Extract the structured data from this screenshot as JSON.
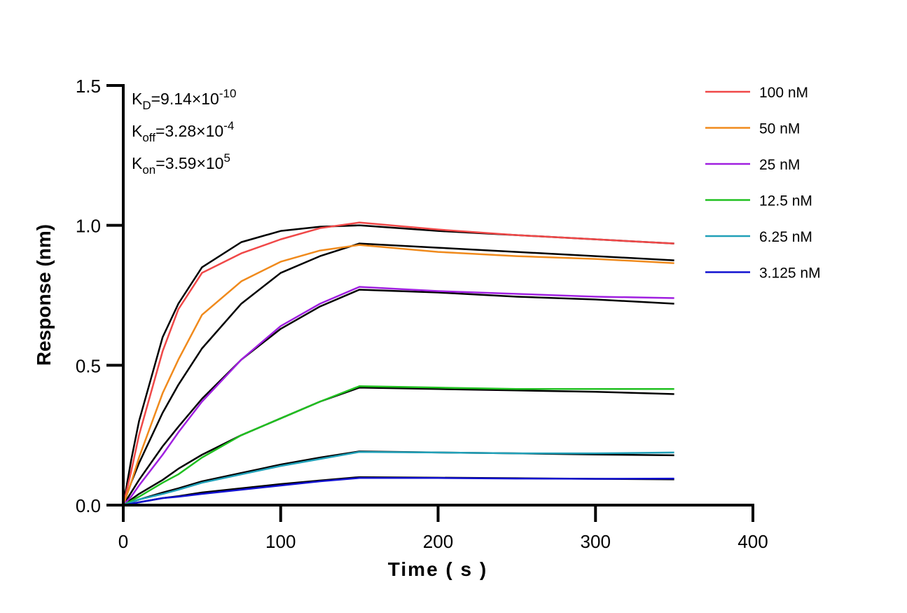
{
  "chart_data": {
    "type": "line",
    "title": "",
    "xlabel": "Time ( s )",
    "ylabel": "Response (nm)",
    "xlim": [
      0,
      400
    ],
    "ylim": [
      0,
      1.5
    ],
    "xticks": [
      "0",
      "100",
      "200",
      "300",
      "400"
    ],
    "yticks": [
      "0.0",
      "0.5",
      "1.0",
      "1.5"
    ],
    "grid": false,
    "legend_position": "top-right",
    "fit_color": "#000000",
    "annotations": [
      {
        "k": "K",
        "sub": "D",
        "value": "=9.14×10",
        "exp": "-10"
      },
      {
        "k": "K",
        "sub": "off",
        "value": "=3.28×10",
        "exp": "-4"
      },
      {
        "k": "K",
        "sub": "on",
        "value": "=3.59×10",
        "exp": "5"
      }
    ],
    "x": [
      0,
      5,
      10,
      25,
      35,
      50,
      75,
      100,
      125,
      150,
      200,
      250,
      300,
      350
    ],
    "series": [
      {
        "name": "100 nM",
        "color": "#f04848",
        "values": [
          0,
          0.12,
          0.25,
          0.55,
          0.7,
          0.83,
          0.9,
          0.95,
          0.99,
          1.01,
          0.985,
          0.965,
          0.95,
          0.935
        ],
        "fit": [
          0,
          0.16,
          0.3,
          0.6,
          0.72,
          0.85,
          0.94,
          0.98,
          0.995,
          1.0,
          0.98,
          0.965,
          0.95,
          0.935
        ]
      },
      {
        "name": "50 nM",
        "color": "#f08a1c",
        "values": [
          0,
          0.08,
          0.17,
          0.4,
          0.52,
          0.68,
          0.8,
          0.87,
          0.91,
          0.93,
          0.905,
          0.89,
          0.88,
          0.865
        ],
        "fit": [
          0,
          0.08,
          0.15,
          0.33,
          0.43,
          0.56,
          0.72,
          0.83,
          0.89,
          0.935,
          0.92,
          0.905,
          0.89,
          0.875
        ]
      },
      {
        "name": "25 nM",
        "color": "#a020e0",
        "values": [
          0,
          0.03,
          0.07,
          0.18,
          0.26,
          0.37,
          0.52,
          0.64,
          0.72,
          0.78,
          0.765,
          0.755,
          0.745,
          0.74
        ],
        "fit": [
          0,
          0.045,
          0.09,
          0.21,
          0.28,
          0.38,
          0.52,
          0.63,
          0.71,
          0.77,
          0.76,
          0.745,
          0.735,
          0.72
        ]
      },
      {
        "name": "12.5 nM",
        "color": "#20c020",
        "values": [
          0,
          0.015,
          0.03,
          0.08,
          0.11,
          0.17,
          0.25,
          0.31,
          0.37,
          0.425,
          0.42,
          0.415,
          0.415,
          0.415
        ],
        "fit": [
          0,
          0.02,
          0.04,
          0.09,
          0.13,
          0.18,
          0.25,
          0.31,
          0.37,
          0.42,
          0.415,
          0.41,
          0.405,
          0.397
        ]
      },
      {
        "name": "6.25 nM",
        "color": "#20a0b8",
        "values": [
          0,
          0.01,
          0.02,
          0.04,
          0.055,
          0.08,
          0.11,
          0.14,
          0.165,
          0.19,
          0.188,
          0.185,
          0.185,
          0.188
        ],
        "fit": [
          0,
          0.01,
          0.02,
          0.045,
          0.06,
          0.085,
          0.115,
          0.145,
          0.17,
          0.192,
          0.188,
          0.185,
          0.181,
          0.178
        ]
      },
      {
        "name": "3.125 nM",
        "color": "#1010d0",
        "values": [
          0,
          0.005,
          0.01,
          0.025,
          0.03,
          0.04,
          0.055,
          0.07,
          0.085,
          0.097,
          0.097,
          0.095,
          0.094,
          0.095
        ],
        "fit": [
          0,
          0.005,
          0.01,
          0.025,
          0.032,
          0.045,
          0.06,
          0.075,
          0.088,
          0.1,
          0.098,
          0.096,
          0.094,
          0.092
        ]
      }
    ]
  }
}
